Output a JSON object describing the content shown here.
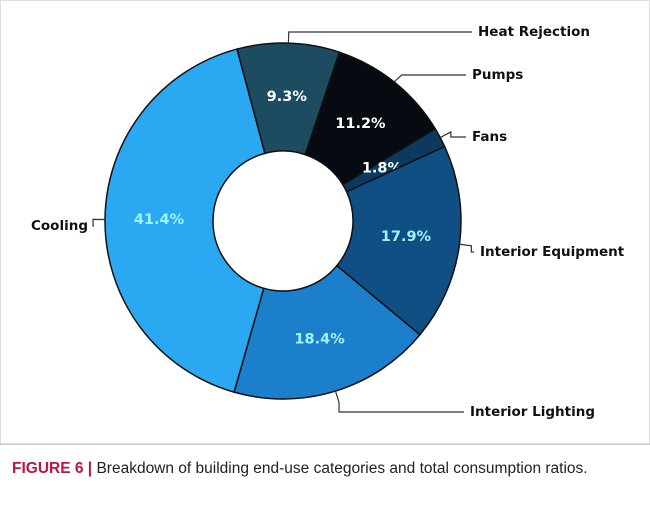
{
  "chart_data": {
    "type": "pie",
    "categories": [
      "Heat Rejection",
      "Pumps",
      "Fans",
      "Interior Equipment",
      "Interior Lighting",
      "Cooling"
    ],
    "values": [
      9.3,
      11.2,
      1.8,
      17.9,
      18.4,
      41.4
    ],
    "value_labels": [
      "9.3%",
      "11.2%",
      "1.8%",
      "17.9%",
      "18.4%",
      "41.4%"
    ],
    "colors": [
      "#1d4b60",
      "#060b12",
      "#0c3a5e",
      "#0f4f84",
      "#1c7fcc",
      "#2aa9f2"
    ],
    "donut": true
  },
  "caption": {
    "label": "FIGURE 6 |",
    "text": "Breakdown of building end-use categories and total consumption ratios."
  }
}
